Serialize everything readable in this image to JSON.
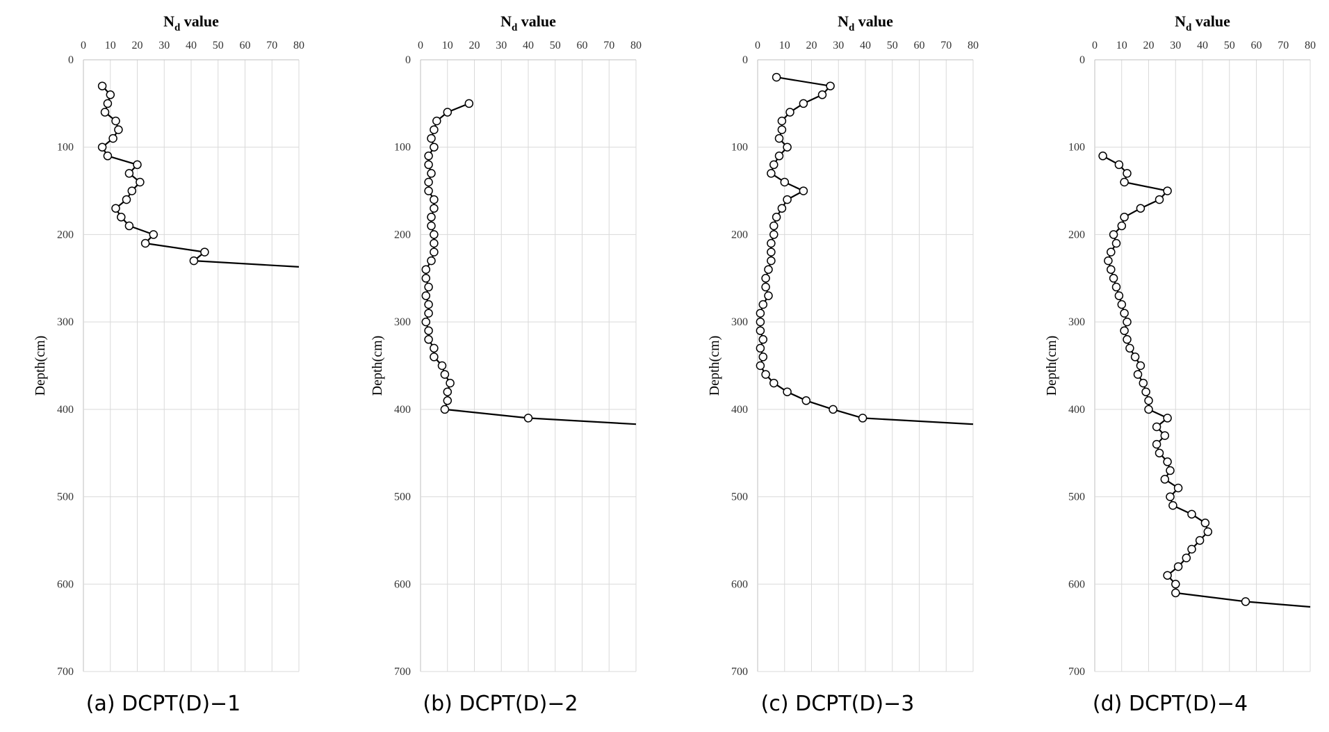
{
  "chart_data": [
    {
      "type": "line",
      "caption": "(a) DCPT(D)−1",
      "xlabel_main": "N",
      "xlabel_sub": "d",
      "xlabel_rest": " value",
      "ylabel": "Depth(cm)",
      "xlim": [
        0,
        80
      ],
      "ylim": [
        0,
        700
      ],
      "y_inverted": true,
      "x_axis_position": "top",
      "grid": true,
      "xticks": [
        0,
        10,
        20,
        30,
        40,
        50,
        60,
        70,
        80
      ],
      "yticks": [
        0,
        100,
        200,
        300,
        400,
        500,
        600,
        700
      ],
      "series": [
        {
          "points": [
            [
              7,
              30
            ],
            [
              10,
              40
            ],
            [
              9,
              50
            ],
            [
              8,
              60
            ],
            [
              12,
              70
            ],
            [
              13,
              80
            ],
            [
              11,
              90
            ],
            [
              7,
              100
            ],
            [
              9,
              110
            ],
            [
              20,
              120
            ],
            [
              17,
              130
            ],
            [
              21,
              140
            ],
            [
              18,
              150
            ],
            [
              16,
              160
            ],
            [
              12,
              170
            ],
            [
              14,
              180
            ],
            [
              17,
              190
            ],
            [
              26,
              200
            ],
            [
              23,
              210
            ],
            [
              45,
              220
            ],
            [
              41,
              230
            ]
          ],
          "tail_to": [
            80,
            237
          ]
        }
      ]
    },
    {
      "type": "line",
      "caption": "(b) DCPT(D)−2",
      "xlabel_main": "N",
      "xlabel_sub": "d",
      "xlabel_rest": " value",
      "ylabel": "Depth(cm)",
      "xlim": [
        0,
        80
      ],
      "ylim": [
        0,
        700
      ],
      "y_inverted": true,
      "x_axis_position": "top",
      "grid": true,
      "xticks": [
        0,
        10,
        20,
        30,
        40,
        50,
        60,
        70,
        80
      ],
      "yticks": [
        0,
        100,
        200,
        300,
        400,
        500,
        600,
        700
      ],
      "series": [
        {
          "points": [
            [
              18,
              50
            ],
            [
              10,
              60
            ],
            [
              6,
              70
            ],
            [
              5,
              80
            ],
            [
              4,
              90
            ],
            [
              5,
              100
            ],
            [
              3,
              110
            ],
            [
              3,
              120
            ],
            [
              4,
              130
            ],
            [
              3,
              140
            ],
            [
              3,
              150
            ],
            [
              5,
              160
            ],
            [
              5,
              170
            ],
            [
              4,
              180
            ],
            [
              4,
              190
            ],
            [
              5,
              200
            ],
            [
              5,
              210
            ],
            [
              5,
              220
            ],
            [
              4,
              230
            ],
            [
              2,
              240
            ],
            [
              2,
              250
            ],
            [
              3,
              260
            ],
            [
              2,
              270
            ],
            [
              3,
              280
            ],
            [
              3,
              290
            ],
            [
              2,
              300
            ],
            [
              3,
              310
            ],
            [
              3,
              320
            ],
            [
              5,
              330
            ],
            [
              5,
              340
            ],
            [
              8,
              350
            ],
            [
              9,
              360
            ],
            [
              11,
              370
            ],
            [
              10,
              380
            ],
            [
              10,
              390
            ],
            [
              9,
              400
            ],
            [
              40,
              410
            ]
          ],
          "tail_to": [
            80,
            417
          ]
        }
      ]
    },
    {
      "type": "line",
      "caption": "(c) DCPT(D)−3",
      "xlabel_main": "N",
      "xlabel_sub": "d",
      "xlabel_rest": " value",
      "ylabel": "Depth(cm)",
      "xlim": [
        0,
        80
      ],
      "ylim": [
        0,
        700
      ],
      "y_inverted": true,
      "x_axis_position": "top",
      "grid": true,
      "xticks": [
        0,
        10,
        20,
        30,
        40,
        50,
        60,
        70,
        80
      ],
      "yticks": [
        0,
        100,
        200,
        300,
        400,
        500,
        600,
        700
      ],
      "series": [
        {
          "points": [
            [
              7,
              20
            ],
            [
              27,
              30
            ],
            [
              24,
              40
            ],
            [
              17,
              50
            ],
            [
              12,
              60
            ],
            [
              9,
              70
            ],
            [
              9,
              80
            ],
            [
              8,
              90
            ],
            [
              11,
              100
            ],
            [
              8,
              110
            ],
            [
              6,
              120
            ],
            [
              5,
              130
            ],
            [
              10,
              140
            ],
            [
              17,
              150
            ],
            [
              11,
              160
            ],
            [
              9,
              170
            ],
            [
              7,
              180
            ],
            [
              6,
              190
            ],
            [
              6,
              200
            ],
            [
              5,
              210
            ],
            [
              5,
              220
            ],
            [
              5,
              230
            ],
            [
              4,
              240
            ],
            [
              3,
              250
            ],
            [
              3,
              260
            ],
            [
              4,
              270
            ],
            [
              2,
              280
            ],
            [
              1,
              290
            ],
            [
              1,
              300
            ],
            [
              1,
              310
            ],
            [
              2,
              320
            ],
            [
              1,
              330
            ],
            [
              2,
              340
            ],
            [
              1,
              350
            ],
            [
              3,
              360
            ],
            [
              6,
              370
            ],
            [
              11,
              380
            ],
            [
              18,
              390
            ],
            [
              28,
              400
            ],
            [
              39,
              410
            ]
          ],
          "tail_to": [
            80,
            417
          ]
        }
      ]
    },
    {
      "type": "line",
      "caption": "(d) DCPT(D)−4",
      "xlabel_main": "N",
      "xlabel_sub": "d",
      "xlabel_rest": " value",
      "ylabel": "Depth(cm)",
      "xlim": [
        0,
        80
      ],
      "ylim": [
        0,
        700
      ],
      "y_inverted": true,
      "x_axis_position": "top",
      "grid": true,
      "xticks": [
        0,
        10,
        20,
        30,
        40,
        50,
        60,
        70,
        80
      ],
      "yticks": [
        0,
        100,
        200,
        300,
        400,
        500,
        600,
        700
      ],
      "series": [
        {
          "points": [
            [
              3,
              110
            ],
            [
              9,
              120
            ],
            [
              12,
              130
            ],
            [
              11,
              140
            ],
            [
              27,
              150
            ],
            [
              24,
              160
            ],
            [
              17,
              170
            ],
            [
              11,
              180
            ],
            [
              10,
              190
            ],
            [
              7,
              200
            ],
            [
              8,
              210
            ],
            [
              6,
              220
            ],
            [
              5,
              230
            ],
            [
              6,
              240
            ],
            [
              7,
              250
            ],
            [
              8,
              260
            ],
            [
              9,
              270
            ],
            [
              10,
              280
            ],
            [
              11,
              290
            ],
            [
              12,
              300
            ],
            [
              11,
              310
            ],
            [
              12,
              320
            ],
            [
              13,
              330
            ],
            [
              15,
              340
            ],
            [
              17,
              350
            ],
            [
              16,
              360
            ],
            [
              18,
              370
            ],
            [
              19,
              380
            ],
            [
              20,
              390
            ],
            [
              20,
              400
            ],
            [
              27,
              410
            ],
            [
              23,
              420
            ],
            [
              26,
              430
            ],
            [
              23,
              440
            ],
            [
              24,
              450
            ],
            [
              27,
              460
            ],
            [
              28,
              470
            ],
            [
              26,
              480
            ],
            [
              31,
              490
            ],
            [
              28,
              500
            ],
            [
              29,
              510
            ],
            [
              36,
              520
            ],
            [
              41,
              530
            ],
            [
              42,
              540
            ],
            [
              39,
              550
            ],
            [
              36,
              560
            ],
            [
              34,
              570
            ],
            [
              31,
              580
            ],
            [
              27,
              590
            ],
            [
              30,
              600
            ],
            [
              30,
              610
            ],
            [
              56,
              620
            ]
          ],
          "tail_to": [
            80,
            626
          ]
        }
      ]
    }
  ]
}
